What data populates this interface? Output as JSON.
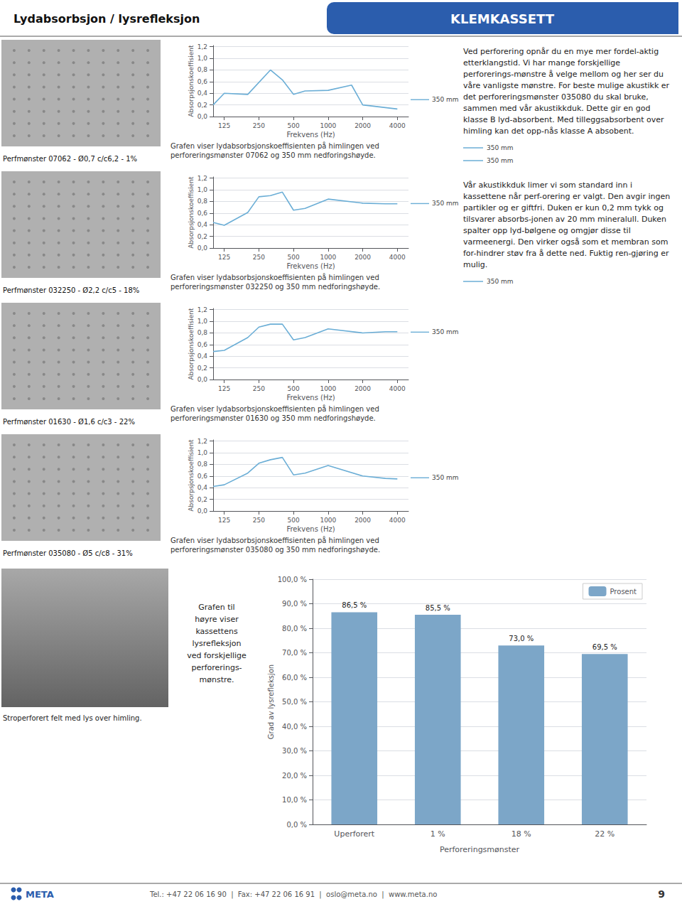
{
  "page": {
    "title_left": "Lydabsorbsjon / lysrefleksjon",
    "title_right": "KLEMKASSETT",
    "title_right_color": "#2B5DAD",
    "marker_color": "#6BAED6",
    "text_blocks": [
      {
        "text": "Ved perforering opnår du en mye mer fordel-aktig etterklangstid. Vi har mange forskjellige perforerings-mønstre å velge mellom og her ser du våre vanligste mønstre. For beste mulige akustikk er det perforeringsmønster 035080 du skal bruke, sammen med vår akustikkduk. Dette gir en god klasse B lyd-absorbent. Med tilleggsabsorbent over himling kan det opp-nås klasse A absobent.",
        "markers": [
          "350 mm",
          "350 mm"
        ]
      },
      {
        "text": "Vår akustikkduk limer vi som standard inn i kassettene når perf-orering er valgt. Den avgir ingen partikler og er giftfri. Duken er kun 0,2 mm tykk og tilsvarer absorbs-jonen av 20 mm mineralull. Duken spalter opp lyd-bølgene og omgjør disse til varmeenergi. Den virker også som et membran som for-hindrer støv fra å dette ned. Fuktig ren-gjøring er mulig.",
        "markers": [
          "350 mm"
        ]
      }
    ],
    "bottom_caption": "Stroperforert felt med lys over himling.",
    "bar_caption": "Grafen til\nhøyre viser\nkassettens\nlysrefleksjon\nved forskjellige\nperforerings-\nmønstre.",
    "logo": "META",
    "logo_color": "#2B5DAD",
    "footer_text": "Tel.: +47 22 06 16 90  |  Fax: +47 22 06 16 91  |  oslo@meta.no  |  www.meta.no",
    "page_number": "9"
  },
  "chart_data": [
    {
      "type": "line",
      "title": "Perfmønster 07062 - Ø0,7 c/c6,2 - 1%",
      "caption": "Grafen viser lydabsorbsjonskoeffisienten på himlingen ved\nperforeringsmønster 07062 og 350 mm nedforingshøyde.",
      "xlabel": "Frekvens (Hz)",
      "ylabel": "Absorpsjonskoeffisient",
      "x": [
        100,
        125,
        200,
        315,
        400,
        500,
        630,
        1000,
        1600,
        2000,
        4000
      ],
      "values": [
        0.2,
        0.4,
        0.38,
        0.8,
        0.63,
        0.38,
        0.44,
        0.45,
        0.54,
        0.2,
        0.13
      ],
      "color": "#6BAED6",
      "log": "x",
      "xlim": [
        100,
        5000
      ],
      "xticks": [
        125,
        250,
        500,
        1000,
        2000,
        4000
      ],
      "ylim": [
        0,
        1.22
      ],
      "yticks": [
        {
          "value": 0,
          "label": "0,0"
        },
        {
          "value": 0.2,
          "label": "0,2"
        },
        {
          "value": 0.4,
          "label": "0,4"
        },
        {
          "value": 0.6,
          "label": "0,6"
        },
        {
          "value": 0.8,
          "label": "0,8"
        },
        {
          "value": 1,
          "label": "1,0"
        },
        {
          "value": 1.2,
          "label": "1,2"
        }
      ],
      "grid": true,
      "annotations": [
        {
          "text": "350 mm",
          "y": 0.29
        }
      ]
    },
    {
      "type": "line",
      "title": "Perfmønster 032250 - Ø2,2 c/c5 - 18%",
      "caption": "Grafen viser lydabsorbsjonskoeffisienten på himlingen ved\nperforeringsmønster 032250 og 350 mm nedforingshøyde.",
      "xlabel": "Frekvens (Hz)",
      "ylabel": "Absorpsjonskoeffisient",
      "x": [
        100,
        125,
        200,
        250,
        315,
        400,
        500,
        630,
        1000,
        2000,
        3150,
        4000
      ],
      "values": [
        0.44,
        0.39,
        0.61,
        0.88,
        0.9,
        0.96,
        0.65,
        0.68,
        0.84,
        0.77,
        0.76,
        0.76
      ],
      "color": "#6BAED6",
      "log": "x",
      "xlim": [
        100,
        5000
      ],
      "xticks": [
        125,
        250,
        500,
        1000,
        2000,
        4000
      ],
      "ylim": [
        0,
        1.22
      ],
      "yticks": [
        {
          "value": 0,
          "label": "0,0"
        },
        {
          "value": 0.2,
          "label": "0,2"
        },
        {
          "value": 0.4,
          "label": "0,4"
        },
        {
          "value": 0.6,
          "label": "0,6"
        },
        {
          "value": 0.8,
          "label": "0,8"
        },
        {
          "value": 1,
          "label": "1,0"
        },
        {
          "value": 1.2,
          "label": "1,2"
        }
      ],
      "grid": true,
      "annotations": [
        {
          "text": "350 mm",
          "y": 0.7633
        }
      ]
    },
    {
      "type": "line",
      "title": "Perfmønster 01630 - Ø1,6 c/c3 - 22%",
      "caption": "Grafen viser lydabsorbsjonskoeffisienten på himlingen ved\nperforeringsmønster 01630 og 350 mm nedforingshøyde.",
      "xlabel": "Frekvens (Hz)",
      "ylabel": "Absorpsjonskoeffisient",
      "x": [
        100,
        125,
        200,
        250,
        315,
        400,
        500,
        630,
        1000,
        2000,
        3150,
        4000
      ],
      "values": [
        0.48,
        0.5,
        0.72,
        0.9,
        0.95,
        0.95,
        0.68,
        0.72,
        0.87,
        0.8,
        0.82,
        0.82
      ],
      "color": "#6BAED6",
      "log": "x",
      "xlim": [
        100,
        5000
      ],
      "xticks": [
        125,
        250,
        500,
        1000,
        2000,
        4000
      ],
      "ylim": [
        0,
        1.22
      ],
      "yticks": [
        {
          "value": 0,
          "label": "0,0"
        },
        {
          "value": 0.2,
          "label": "0,2"
        },
        {
          "value": 0.4,
          "label": "0,4"
        },
        {
          "value": 0.6,
          "label": "0,6"
        },
        {
          "value": 0.8,
          "label": "0,8"
        },
        {
          "value": 1,
          "label": "1,0"
        },
        {
          "value": 1.2,
          "label": "1,2"
        }
      ],
      "grid": true,
      "annotations": [
        {
          "text": "350 mm",
          "y": 0.8133
        }
      ]
    },
    {
      "type": "line",
      "title": "Perfmønster 035080 - Ø5 c/c8 - 31%",
      "caption": "Grafen viser lydabsorbsjonskoeffisienten på himlingen ved\nperforeringsmønster 035080 og 350 mm nedforingshøyde.",
      "xlabel": "Frekvens (Hz)",
      "ylabel": "Absorpsjonskoeffisient",
      "x": [
        100,
        125,
        200,
        250,
        315,
        400,
        500,
        630,
        1000,
        2000,
        3150,
        4000
      ],
      "values": [
        0.42,
        0.45,
        0.65,
        0.82,
        0.88,
        0.92,
        0.62,
        0.65,
        0.78,
        0.6,
        0.56,
        0.55
      ],
      "color": "#6BAED6",
      "log": "x",
      "xlim": [
        100,
        5000
      ],
      "xticks": [
        125,
        250,
        500,
        1000,
        2000,
        4000
      ],
      "ylim": [
        0,
        1.22
      ],
      "yticks": [
        {
          "value": 0,
          "label": "0,0"
        },
        {
          "value": 0.2,
          "label": "0,2"
        },
        {
          "value": 0.4,
          "label": "0,4"
        },
        {
          "value": 0.6,
          "label": "0,6"
        },
        {
          "value": 0.8,
          "label": "0,8"
        },
        {
          "value": 1,
          "label": "1,0"
        },
        {
          "value": 1.2,
          "label": "1,2"
        }
      ],
      "grid": true,
      "annotations": [
        {
          "text": "350 mm",
          "y": 0.57
        }
      ]
    },
    {
      "type": "bar",
      "xlabel": "Perforeringsmønster",
      "ylabel": "Grad av lysrefleksjon",
      "categories": [
        "Uperforert",
        "1 %",
        "18 %",
        "22 %"
      ],
      "series": [
        {
          "name": "Prosent",
          "color": "#7CA6C8",
          "values": [
            86.5,
            85.5,
            73.0,
            69.5
          ],
          "value_labels": [
            "86,5 %",
            "85,5 %",
            "73,0 %",
            "69,5 %"
          ]
        }
      ],
      "ylim": [
        0,
        100
      ],
      "yticks": [
        {
          "value": 0,
          "label": "0,0 %"
        },
        {
          "value": 10,
          "label": "10,0 %"
        },
        {
          "value": 20,
          "label": "20,0 %"
        },
        {
          "value": 30,
          "label": "30,0 %"
        },
        {
          "value": 40,
          "label": "40,0 %"
        },
        {
          "value": 50,
          "label": "50,0 %"
        },
        {
          "value": 60,
          "label": "60,0 %"
        },
        {
          "value": 70,
          "label": "70,0 %"
        },
        {
          "value": 80,
          "label": "80,0 %"
        },
        {
          "value": 90,
          "label": "90,0 %"
        },
        {
          "value": 100,
          "label": "100,0 %"
        }
      ],
      "grid": true,
      "legend": "upper right",
      "data_labels": true
    }
  ]
}
